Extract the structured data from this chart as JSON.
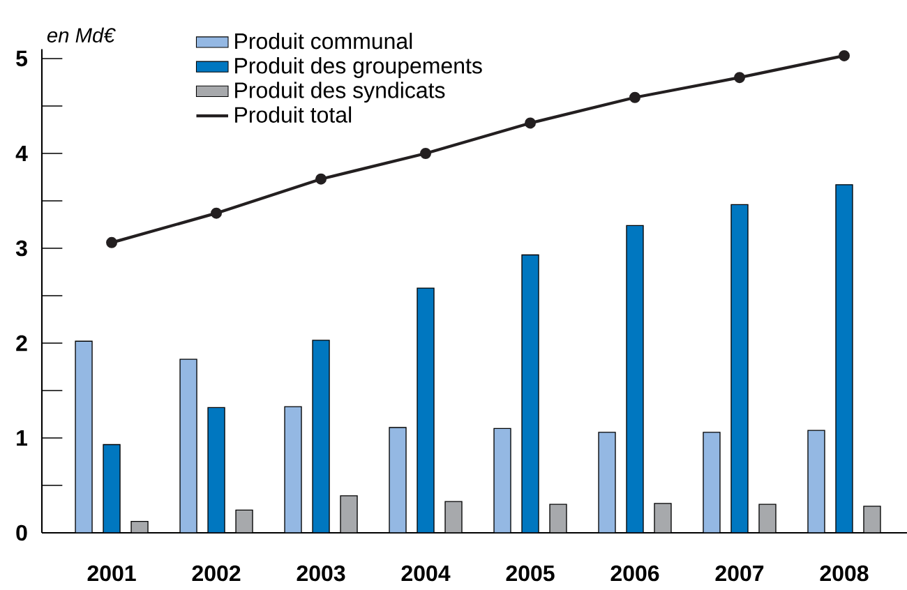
{
  "chart_data": {
    "type": "bar",
    "ylabel": "en Md€",
    "categories": [
      "2001",
      "2002",
      "2003",
      "2004",
      "2005",
      "2006",
      "2007",
      "2008"
    ],
    "series": [
      {
        "name": "Produit communal",
        "color": "#94b8e3",
        "values": [
          2.02,
          1.83,
          1.33,
          1.11,
          1.1,
          1.06,
          1.06,
          1.08
        ]
      },
      {
        "name": "Produit des groupements",
        "color": "#0077c0",
        "values": [
          0.93,
          1.32,
          2.03,
          2.58,
          2.93,
          3.24,
          3.46,
          3.67
        ]
      },
      {
        "name": "Produit des syndicats",
        "color": "#a7a9ac",
        "values": [
          0.12,
          0.24,
          0.39,
          0.33,
          0.3,
          0.31,
          0.3,
          0.28
        ]
      },
      {
        "name": "Produit total",
        "type": "line",
        "marker": "circle",
        "color": "#231f20",
        "values": [
          3.06,
          3.37,
          3.73,
          4.0,
          4.32,
          4.59,
          4.8,
          5.03
        ]
      }
    ],
    "ylim": [
      0,
      5.1
    ],
    "yticks": [
      0,
      {
        "value": 0.5,
        "label": null
      },
      1,
      {
        "value": 1.5,
        "label": null
      },
      2,
      {
        "value": 2.5,
        "label": null
      },
      3,
      {
        "value": 3.5,
        "label": null
      },
      4,
      {
        "value": 4.5,
        "label": null
      },
      5
    ],
    "legend": "top left",
    "grid": false
  }
}
